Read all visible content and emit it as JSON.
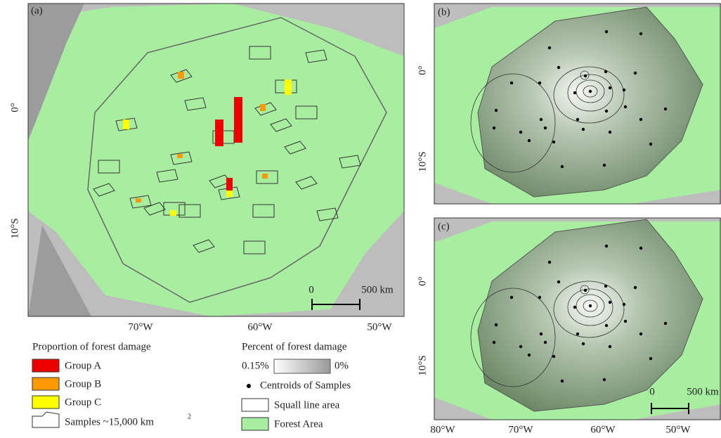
{
  "panels": [
    {
      "label": "(a)",
      "lat_labels": [
        "0°",
        "10°S"
      ],
      "lon_labels": [
        "70°W",
        "60°W",
        "50°W"
      ],
      "scale": [
        "0",
        "500 km"
      ]
    },
    {
      "label": "(b)",
      "lat_labels": [
        "0°",
        "10°S"
      ]
    },
    {
      "label": "(c)",
      "lat_labels": [
        "0°",
        "10°S"
      ],
      "lon_labels": [
        "80°W",
        "70°W",
        "60°W",
        "50°W"
      ],
      "scale": [
        "0",
        "500 km"
      ]
    }
  ],
  "legend": {
    "left": {
      "title": "Proportion of forest damage",
      "items": [
        "Group A",
        "Group B",
        "Group C"
      ],
      "samples": "Samples ~15,000 km",
      "samples_sup": "2"
    },
    "right": {
      "title": "Percent of forest damage",
      "gradient_high": "0.15%",
      "gradient_low": "0%",
      "items": [
        "Centroids of Samples",
        "Squall line area",
        "Forest Area"
      ]
    }
  }
}
